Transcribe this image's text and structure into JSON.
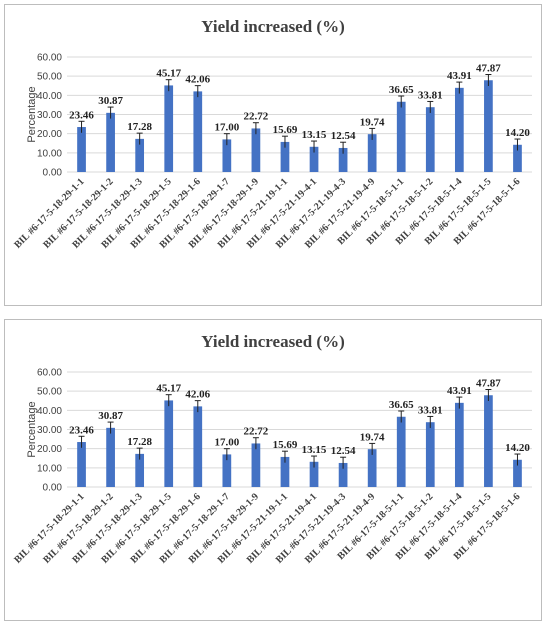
{
  "chart_data": [
    {
      "type": "bar",
      "title": "Yield increased (%)",
      "ylabel": "Percentage",
      "xlabel": "",
      "ylim": [
        0,
        60
      ],
      "yticks": [
        "0.00",
        "10.00",
        "20.00",
        "30.00",
        "40.00",
        "50.00",
        "60.00"
      ],
      "grid": true,
      "error_bars": true,
      "categories": [
        "BIL #6-17-5-18-29-1-1",
        "BIL #6-17-5-18-29-1-2",
        "BIL #6-17-5-18-29-1-3",
        "BIL #6-17-5-18-29-1-5",
        "BIL #6-17-5-18-29-1-6",
        "BIL #6-17-5-18-29-1-7",
        "BIL #6-17-5-18-29-1-9",
        "BIL #6-17-5-21-19-1-1",
        "BIL #6-17-5-21-19-4-1",
        "BIL #6-17-5-21-19-4-3",
        "BIL #6-17-5-21-19-4-9",
        "BIL #6-17-5-18-5-1-1",
        "BIL #6-17-5-18-5-1-2",
        "BIL #6-17-5-18-5-1-4",
        "BIL #6-17-5-18-5-1-5",
        "BIL #6-17-5-18-5-1-6"
      ],
      "values": [
        23.46,
        30.87,
        17.28,
        45.17,
        42.06,
        17.0,
        22.72,
        15.69,
        13.15,
        12.54,
        19.74,
        36.65,
        33.81,
        43.91,
        47.87,
        14.2
      ],
      "labels": [
        "23.46",
        "30.87",
        "17.28",
        "45.17",
        "42.06",
        "17.00",
        "22.72",
        "15.69",
        "13.15",
        "12.54",
        "19.74",
        "36.65",
        "33.81",
        "43.91",
        "47.87",
        "14.20"
      ],
      "errors": [
        3,
        3,
        3,
        3,
        3,
        3,
        3,
        3,
        3,
        3,
        3,
        3,
        3,
        3,
        3,
        3
      ],
      "colors": {
        "bar": "#4472c4"
      }
    },
    {
      "type": "bar",
      "title": "Yield increased (%)",
      "ylabel": "Percentage",
      "xlabel": "",
      "ylim": [
        0,
        60
      ],
      "yticks": [
        "0.00",
        "10.00",
        "20.00",
        "30.00",
        "40.00",
        "50.00",
        "60.00"
      ],
      "grid": true,
      "error_bars": true,
      "categories": [
        "BIL #6-17-5-18-29-1-1",
        "BIL #6-17-5-18-29-1-2",
        "BIL #6-17-5-18-29-1-3",
        "BIL #6-17-5-18-29-1-5",
        "BIL #6-17-5-18-29-1-6",
        "BIL #6-17-5-18-29-1-7",
        "BIL #6-17-5-18-29-1-9",
        "BIL #6-17-5-21-19-1-1",
        "BIL #6-17-5-21-19-4-1",
        "BIL #6-17-5-21-19-4-3",
        "BIL #6-17-5-21-19-4-9",
        "BIL #6-17-5-18-5-1-1",
        "BIL #6-17-5-18-5-1-2",
        "BIL #6-17-5-18-5-1-4",
        "BIL #6-17-5-18-5-1-5",
        "BIL #6-17-5-18-5-1-6"
      ],
      "values": [
        23.46,
        30.87,
        17.28,
        45.17,
        42.06,
        17.0,
        22.72,
        15.69,
        13.15,
        12.54,
        19.74,
        36.65,
        33.81,
        43.91,
        47.87,
        14.2
      ],
      "labels": [
        "23.46",
        "30.87",
        "17.28",
        "45.17",
        "42.06",
        "17.00",
        "22.72",
        "15.69",
        "13.15",
        "12.54",
        "19.74",
        "36.65",
        "33.81",
        "43.91",
        "47.87",
        "14.20"
      ],
      "errors": [
        3,
        3,
        3,
        3,
        3,
        3,
        3,
        3,
        3,
        3,
        3,
        3,
        3,
        3,
        3,
        3
      ],
      "colors": {
        "bar": "#4472c4"
      }
    }
  ]
}
